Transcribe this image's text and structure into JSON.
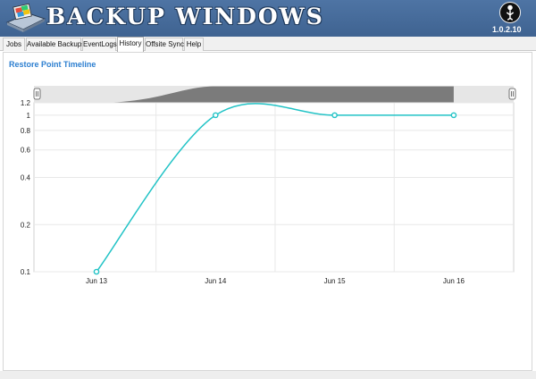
{
  "app": {
    "title": "BACKUP WINDOWS",
    "version": "1.0.2.10",
    "logo_icon": "backup-drive-icon",
    "brand_icon": "tree-person-icon"
  },
  "tabs": [
    {
      "label": "Jobs",
      "active": false
    },
    {
      "label": "Available Backups",
      "active": false
    },
    {
      "label": "EventLogs",
      "active": false
    },
    {
      "label": "History",
      "active": true
    },
    {
      "label": "Offsite Sync",
      "active": false
    },
    {
      "label": "Help",
      "active": false
    }
  ],
  "panel": {
    "title": "Restore Point Timeline"
  },
  "colors": {
    "header": "#4a6f9e",
    "series": "#22c3c6",
    "title_text": "#2d7fd0",
    "navigator_fill": "#7b7b7b"
  },
  "chart_data": {
    "type": "line",
    "title": "",
    "xlabel": "",
    "ylabel": "",
    "y_scale": "log",
    "ylim": [
      0.1,
      1.2
    ],
    "y_ticks": [
      "0.1",
      "0.2",
      "0.4",
      "0.6",
      "0.8",
      "1",
      "1.2"
    ],
    "categories": [
      "Jun 13",
      "Jun 14",
      "Jun 15",
      "Jun 16"
    ],
    "series": [
      {
        "values": [
          0.1,
          1,
          1,
          1
        ]
      }
    ],
    "grid": true,
    "legend": "none",
    "navigator": true
  }
}
